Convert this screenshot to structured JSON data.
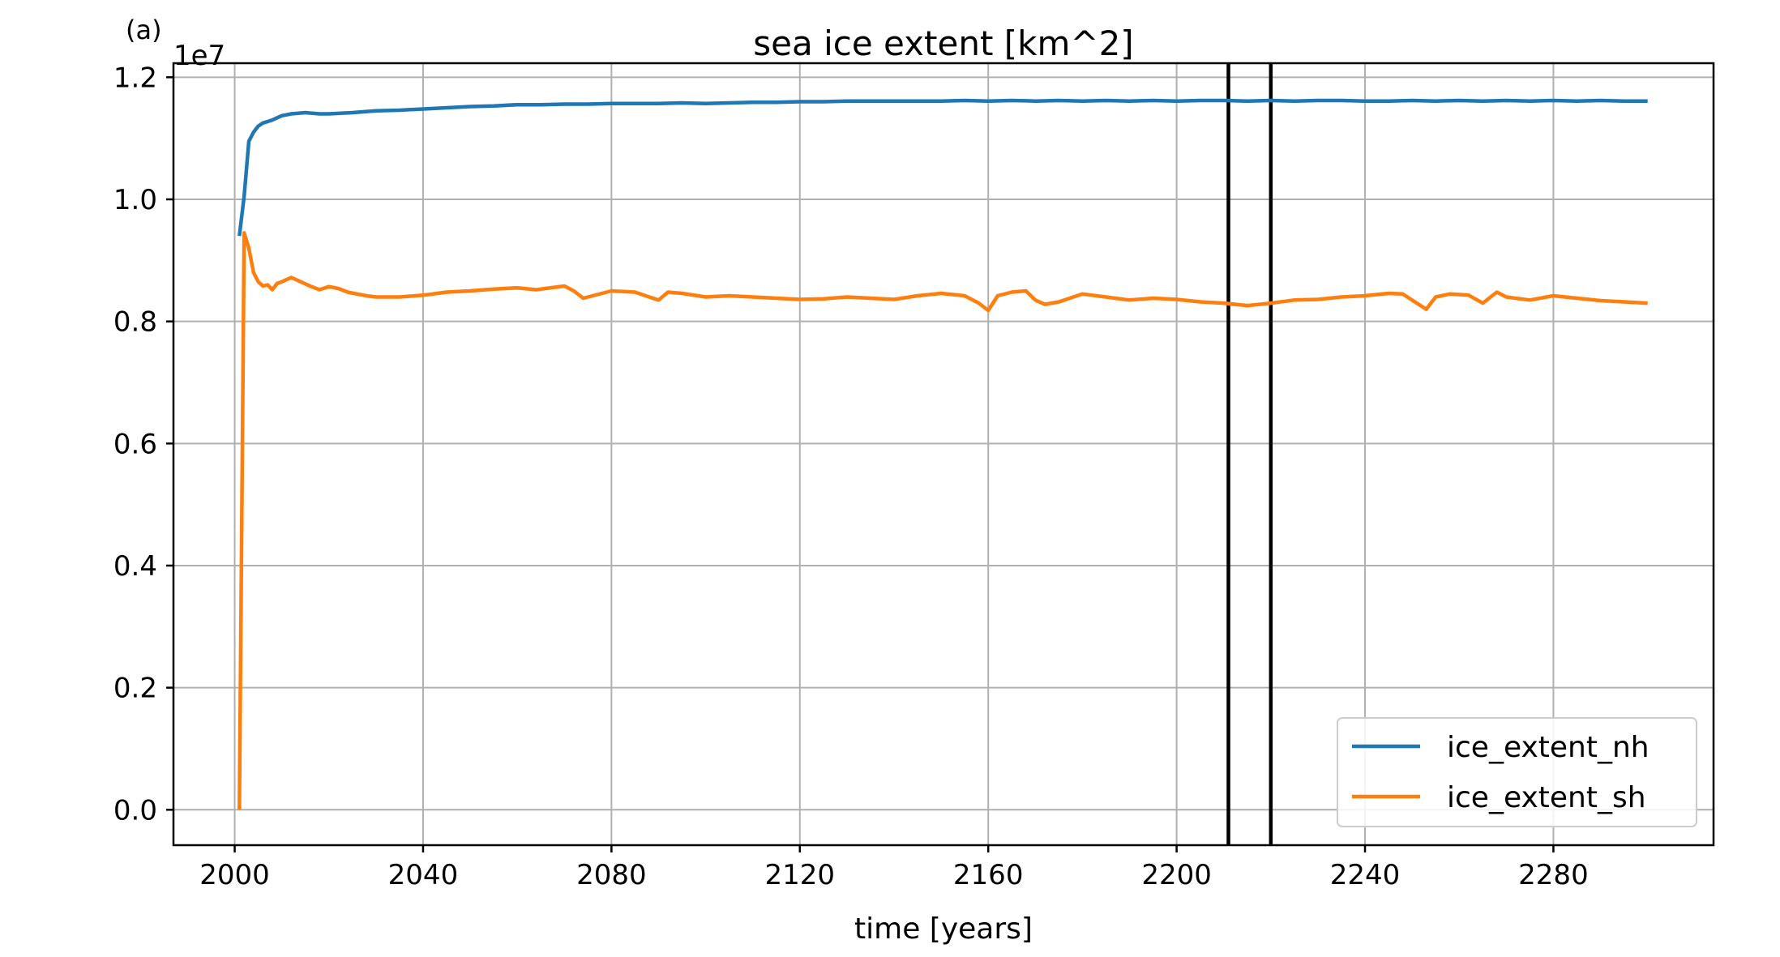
{
  "panel_label": "(a)",
  "chart_data": {
    "type": "line",
    "title": "sea ice extent [km^2]",
    "xlabel": "time [years]",
    "ylabel": "",
    "y_multiplier_label": "1e7",
    "xlim": [
      1987,
      2314
    ],
    "ylim": [
      -0.058,
      1.223
    ],
    "xticks": [
      2000,
      2040,
      2080,
      2120,
      2160,
      2200,
      2240,
      2280
    ],
    "xtick_labels": [
      "2000",
      "2040",
      "2080",
      "2120",
      "2160",
      "2200",
      "2240",
      "2280"
    ],
    "yticks": [
      0.0,
      0.2,
      0.4,
      0.6,
      0.8,
      1.0,
      1.2
    ],
    "ytick_labels": [
      "0.0",
      "0.2",
      "0.4",
      "0.6",
      "0.8",
      "1.0",
      "1.2"
    ],
    "grid": true,
    "legend_position": "lower-right",
    "vertical_lines": [
      2211,
      2220
    ],
    "series": [
      {
        "name": "ice_extent_nh",
        "color": "#1f77b4",
        "x": [
          2001,
          2002,
          2003,
          2004,
          2005,
          2006,
          2008,
          2010,
          2012,
          2015,
          2018,
          2020,
          2025,
          2030,
          2035,
          2040,
          2045,
          2050,
          2055,
          2060,
          2065,
          2070,
          2075,
          2080,
          2085,
          2090,
          2095,
          2100,
          2105,
          2110,
          2115,
          2120,
          2125,
          2130,
          2135,
          2140,
          2145,
          2150,
          2155,
          2160,
          2165,
          2170,
          2175,
          2180,
          2185,
          2190,
          2195,
          2200,
          2205,
          2210,
          2215,
          2220,
          2225,
          2230,
          2235,
          2240,
          2245,
          2250,
          2255,
          2260,
          2265,
          2270,
          2275,
          2280,
          2285,
          2290,
          2295,
          2300
        ],
        "values": [
          0.94,
          1.005,
          1.095,
          1.11,
          1.12,
          1.125,
          1.13,
          1.137,
          1.14,
          1.142,
          1.14,
          1.14,
          1.142,
          1.145,
          1.146,
          1.148,
          1.15,
          1.152,
          1.153,
          1.155,
          1.155,
          1.156,
          1.156,
          1.157,
          1.157,
          1.157,
          1.158,
          1.157,
          1.158,
          1.159,
          1.159,
          1.16,
          1.16,
          1.161,
          1.161,
          1.161,
          1.161,
          1.161,
          1.162,
          1.161,
          1.162,
          1.161,
          1.162,
          1.161,
          1.162,
          1.161,
          1.162,
          1.161,
          1.162,
          1.162,
          1.161,
          1.162,
          1.161,
          1.162,
          1.162,
          1.161,
          1.161,
          1.162,
          1.161,
          1.162,
          1.161,
          1.162,
          1.161,
          1.162,
          1.161,
          1.162,
          1.161,
          1.161
        ]
      },
      {
        "name": "ice_extent_sh",
        "color": "#ff7f0e",
        "x": [
          2001,
          2001.5,
          2002,
          2003,
          2004,
          2005,
          2006,
          2007,
          2008,
          2009,
          2010,
          2012,
          2014,
          2016,
          2018,
          2020,
          2022,
          2024,
          2026,
          2028,
          2030,
          2035,
          2040,
          2045,
          2050,
          2055,
          2060,
          2064,
          2068,
          2070,
          2072,
          2074,
          2076,
          2080,
          2085,
          2088,
          2090,
          2092,
          2095,
          2100,
          2105,
          2110,
          2115,
          2120,
          2125,
          2130,
          2135,
          2140,
          2145,
          2150,
          2155,
          2158,
          2160,
          2162,
          2165,
          2168,
          2170,
          2172,
          2175,
          2180,
          2185,
          2190,
          2195,
          2200,
          2205,
          2210,
          2215,
          2220,
          2225,
          2230,
          2235,
          2240,
          2245,
          2248,
          2251,
          2253,
          2255,
          2258,
          2262,
          2265,
          2268,
          2270,
          2275,
          2280,
          2285,
          2290,
          2295,
          2300
        ],
        "values": [
          0.0,
          0.48,
          0.945,
          0.92,
          0.88,
          0.865,
          0.858,
          0.86,
          0.852,
          0.862,
          0.865,
          0.872,
          0.865,
          0.858,
          0.852,
          0.857,
          0.854,
          0.848,
          0.845,
          0.842,
          0.84,
          0.84,
          0.843,
          0.848,
          0.85,
          0.853,
          0.855,
          0.852,
          0.856,
          0.858,
          0.85,
          0.838,
          0.842,
          0.85,
          0.848,
          0.84,
          0.835,
          0.848,
          0.846,
          0.84,
          0.842,
          0.84,
          0.838,
          0.836,
          0.837,
          0.84,
          0.838,
          0.836,
          0.842,
          0.846,
          0.842,
          0.83,
          0.818,
          0.842,
          0.848,
          0.85,
          0.835,
          0.828,
          0.832,
          0.845,
          0.84,
          0.835,
          0.838,
          0.836,
          0.832,
          0.83,
          0.826,
          0.83,
          0.835,
          0.836,
          0.84,
          0.842,
          0.846,
          0.845,
          0.83,
          0.82,
          0.84,
          0.845,
          0.843,
          0.83,
          0.848,
          0.84,
          0.835,
          0.842,
          0.838,
          0.834,
          0.832,
          0.83
        ]
      }
    ]
  }
}
